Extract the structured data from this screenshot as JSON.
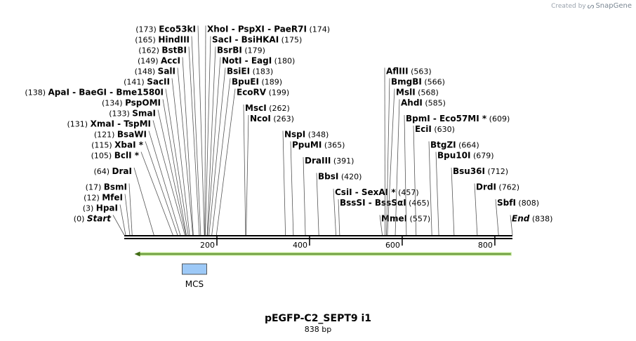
{
  "branding": {
    "prefix": "Created by",
    "name": "SnapGene",
    "logo_icon": "snapgene-logo-icon"
  },
  "sequence": {
    "name": "pEGFP-C2_SEPT9 i1",
    "length_label": "838 bp",
    "length": 838
  },
  "axis": {
    "ticks": [
      200,
      400,
      600,
      800
    ]
  },
  "features": [
    {
      "name": "MCS",
      "start": 125,
      "end": 178,
      "color": "#9dc9f7"
    },
    {
      "name": "",
      "type": "orf",
      "start": 22,
      "end": 836,
      "direction": "reverse",
      "color": "#b9e28b"
    }
  ],
  "sites": [
    {
      "parts": [
        "Start"
      ],
      "pos": 0,
      "pos_label": "(0)",
      "side": "left",
      "italic": true
    },
    {
      "parts": [
        "HpaI"
      ],
      "pos": 3,
      "pos_label": "(3)",
      "side": "left"
    },
    {
      "parts": [
        "MfeI"
      ],
      "pos": 12,
      "pos_label": "(12)",
      "side": "left"
    },
    {
      "parts": [
        "BsmI"
      ],
      "pos": 17,
      "pos_label": "(17)",
      "side": "left"
    },
    {
      "parts": [
        "DraI"
      ],
      "pos": 64,
      "pos_label": "(64)",
      "side": "left"
    },
    {
      "parts": [
        "BclI *"
      ],
      "pos": 105,
      "pos_label": "(105)",
      "side": "left"
    },
    {
      "parts": [
        "XbaI *"
      ],
      "pos": 115,
      "pos_label": "(115)",
      "side": "left"
    },
    {
      "parts": [
        "BsaWI"
      ],
      "pos": 121,
      "pos_label": "(121)",
      "side": "left"
    },
    {
      "parts": [
        "XmaI",
        "TspMI"
      ],
      "pos": 131,
      "pos_label": "(131)",
      "side": "left"
    },
    {
      "parts": [
        "SmaI"
      ],
      "pos": 133,
      "pos_label": "(133)",
      "side": "left"
    },
    {
      "parts": [
        "PspOMI"
      ],
      "pos": 134,
      "pos_label": "(134)",
      "side": "left"
    },
    {
      "parts": [
        "ApaI",
        "BaeGI",
        "Bme1580I"
      ],
      "pos": 138,
      "pos_label": "(138)",
      "side": "left"
    },
    {
      "parts": [
        "SacII"
      ],
      "pos": 141,
      "pos_label": "(141)",
      "side": "left"
    },
    {
      "parts": [
        "SalI"
      ],
      "pos": 148,
      "pos_label": "(148)",
      "side": "left"
    },
    {
      "parts": [
        "AccI"
      ],
      "pos": 149,
      "pos_label": "(149)",
      "side": "left"
    },
    {
      "parts": [
        "BstBI"
      ],
      "pos": 162,
      "pos_label": "(162)",
      "side": "left"
    },
    {
      "parts": [
        "HindIII"
      ],
      "pos": 165,
      "pos_label": "(165)",
      "side": "left"
    },
    {
      "parts": [
        "Eco53kI"
      ],
      "pos": 173,
      "pos_label": "(173)",
      "side": "left"
    },
    {
      "parts": [
        "XhoI",
        "PspXI",
        "PaeR7I"
      ],
      "pos": 174,
      "pos_label": "(174)",
      "side": "right"
    },
    {
      "parts": [
        "SacI",
        "BsiHKAI"
      ],
      "pos": 175,
      "pos_label": "(175)",
      "side": "right"
    },
    {
      "parts": [
        "BsrBI"
      ],
      "pos": 179,
      "pos_label": "(179)",
      "side": "right"
    },
    {
      "parts": [
        "NotI",
        "EagI"
      ],
      "pos": 180,
      "pos_label": "(180)",
      "side": "right"
    },
    {
      "parts": [
        "BsiEI"
      ],
      "pos": 183,
      "pos_label": "(183)",
      "side": "right"
    },
    {
      "parts": [
        "BpuEI"
      ],
      "pos": 189,
      "pos_label": "(189)",
      "side": "right"
    },
    {
      "parts": [
        "EcoRV"
      ],
      "pos": 199,
      "pos_label": "(199)",
      "side": "right"
    },
    {
      "parts": [
        "MscI"
      ],
      "pos": 262,
      "pos_label": "(262)",
      "side": "right"
    },
    {
      "parts": [
        "NcoI"
      ],
      "pos": 263,
      "pos_label": "(263)",
      "side": "right"
    },
    {
      "parts": [
        "NspI"
      ],
      "pos": 348,
      "pos_label": "(348)",
      "side": "right"
    },
    {
      "parts": [
        "PpuMI"
      ],
      "pos": 365,
      "pos_label": "(365)",
      "side": "right"
    },
    {
      "parts": [
        "DraIII"
      ],
      "pos": 391,
      "pos_label": "(391)",
      "side": "right"
    },
    {
      "parts": [
        "BbsI"
      ],
      "pos": 420,
      "pos_label": "(420)",
      "side": "right"
    },
    {
      "parts": [
        "CsiI",
        "SexAI *"
      ],
      "pos": 457,
      "pos_label": "(457)",
      "side": "right"
    },
    {
      "parts": [
        "BssSI",
        "BssSαI"
      ],
      "pos": 465,
      "pos_label": "(465)",
      "side": "right"
    },
    {
      "parts": [
        "MmeI"
      ],
      "pos": 557,
      "pos_label": "(557)",
      "side": "right"
    },
    {
      "parts": [
        "AflIII"
      ],
      "pos": 563,
      "pos_label": "(563)",
      "side": "right"
    },
    {
      "parts": [
        "BmgBI"
      ],
      "pos": 566,
      "pos_label": "(566)",
      "side": "right"
    },
    {
      "parts": [
        "MslI"
      ],
      "pos": 568,
      "pos_label": "(568)",
      "side": "right"
    },
    {
      "parts": [
        "AhdI"
      ],
      "pos": 585,
      "pos_label": "(585)",
      "side": "right"
    },
    {
      "parts": [
        "BpmI",
        "Eco57MI *"
      ],
      "pos": 609,
      "pos_label": "(609)",
      "side": "right"
    },
    {
      "parts": [
        "EciI"
      ],
      "pos": 630,
      "pos_label": "(630)",
      "side": "right"
    },
    {
      "parts": [
        "BtgZI"
      ],
      "pos": 664,
      "pos_label": "(664)",
      "side": "right"
    },
    {
      "parts": [
        "Bpu10I"
      ],
      "pos": 679,
      "pos_label": "(679)",
      "side": "right"
    },
    {
      "parts": [
        "Bsu36I"
      ],
      "pos": 712,
      "pos_label": "(712)",
      "side": "right"
    },
    {
      "parts": [
        "DrdI"
      ],
      "pos": 762,
      "pos_label": "(762)",
      "side": "right"
    },
    {
      "parts": [
        "SbfI"
      ],
      "pos": 808,
      "pos_label": "(808)",
      "side": "right"
    },
    {
      "parts": [
        "End"
      ],
      "pos": 838,
      "pos_label": "(838)",
      "side": "right",
      "italic": true
    }
  ]
}
